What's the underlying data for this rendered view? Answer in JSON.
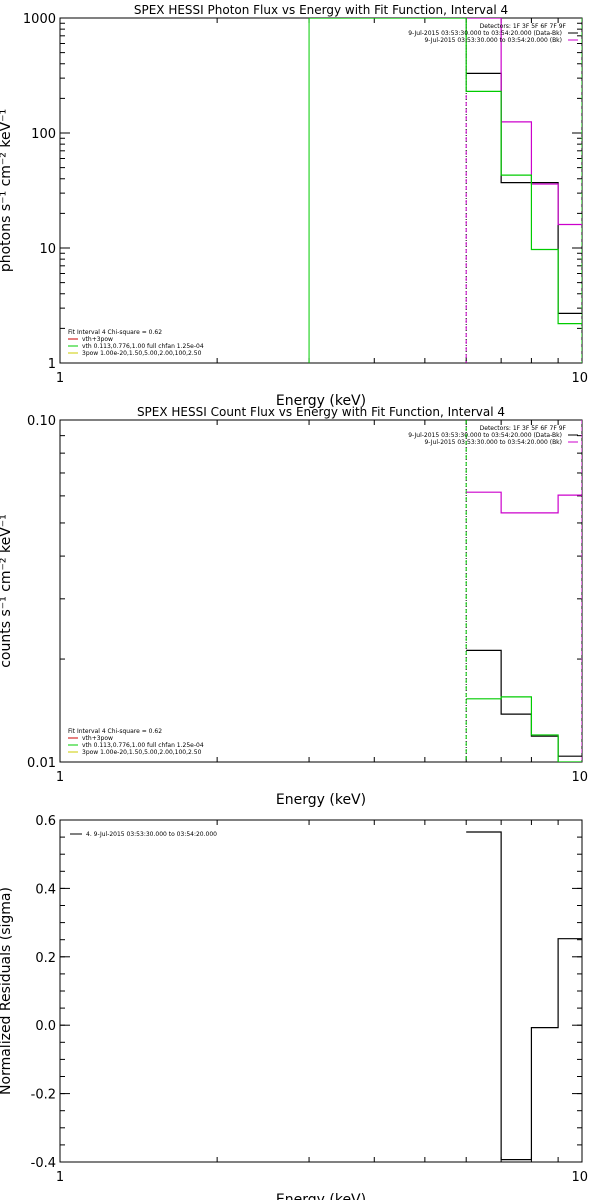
{
  "chart_data": [
    {
      "type": "line",
      "title": "SPEX HESSI Photon Flux vs Energy with Fit Function, Interval 4",
      "xlabel": "Energy (keV)",
      "ylabel": "photons s⁻¹ cm⁻² keV⁻¹",
      "x_scale": "log",
      "y_scale": "log",
      "xlim": [
        1,
        10
      ],
      "ylim": [
        1,
        1000
      ],
      "x_ticks": [
        {
          "v": 1,
          "label": "1"
        },
        {
          "v": 10,
          "label": "10"
        }
      ],
      "y_ticks": [
        {
          "v": 1,
          "label": "1"
        },
        {
          "v": 10,
          "label": "10"
        },
        {
          "v": 100,
          "label": "100"
        },
        {
          "v": 1000,
          "label": "1000"
        }
      ],
      "legend_tr": [
        "Detectors: 1F 3F 5F 6F 7F 9F",
        "9-Jul-2015 03:53:30.000 to 03:54:20.000 (Data-Bk)",
        "9-Jul-2015 03:53:30.000 to 03:54:20.000 (Bk)"
      ],
      "legend_bl": [
        "Fit Interval 4   Chi-square = 0.62",
        "vth+3pow",
        "vth 0.113,0.776,1.00  full chfan 1.25e-04",
        "3pow 1.00e-20,1.50,5.00,2.00,100,2.50"
      ],
      "series": [
        {
          "name": "Data-Bk",
          "color": "#000000",
          "x": [
            6,
            7,
            8,
            9,
            10
          ],
          "y": [
            330,
            37,
            37,
            2.7,
            2.7
          ]
        },
        {
          "name": "Bk",
          "color": "#cc00cc",
          "x": [
            6,
            7,
            8,
            9,
            10
          ],
          "y": [
            1000,
            125,
            36,
            16,
            16
          ]
        },
        {
          "name": "vth+3pow",
          "color": "#00cc00",
          "x": [
            3,
            5,
            6,
            7,
            8,
            9,
            10
          ],
          "y": [
            1000,
            1000,
            230,
            43,
            9.7,
            2.2,
            2.2
          ]
        }
      ],
      "vlines": [
        {
          "x": 3,
          "color": "#00cc00",
          "style": "solid"
        },
        {
          "x": 6,
          "color": "#000000",
          "style": "dotted"
        },
        {
          "x": 6,
          "color": "#cc00cc",
          "style": "dashed"
        },
        {
          "x": 10,
          "color": "#00cc00",
          "style": "dashed"
        }
      ]
    },
    {
      "type": "line",
      "title": "SPEX HESSI Count Flux vs Energy with Fit Function, Interval 4",
      "xlabel": "Energy (keV)",
      "ylabel": "counts s⁻¹ cm⁻² keV⁻¹",
      "x_scale": "log",
      "y_scale": "log",
      "xlim": [
        1,
        10
      ],
      "ylim": [
        0.01,
        0.1
      ],
      "x_ticks": [
        {
          "v": 1,
          "label": "1"
        },
        {
          "v": 10,
          "label": "10"
        }
      ],
      "y_ticks": [
        {
          "v": 0.01,
          "label": "0.01"
        },
        {
          "v": 0.1,
          "label": "0.10"
        }
      ],
      "legend_tr": [
        "Detectors: 1F 3F 5F 6F 7F 9F",
        "9-Jul-2015 03:53:30.000 to 03:54:20.000 (Data-Bk)",
        "9-Jul-2015 03:53:30.000 to 03:54:20.000 (Bk)"
      ],
      "legend_bl": [
        "Fit Interval 4   Chi-square = 0.62",
        "vth+3pow",
        "vth 0.113,0.776,1.00  full chfan 1.25e-04",
        "3pow 1.00e-20,1.50,5.00,2.00,100,2.50"
      ],
      "series": [
        {
          "name": "Data-Bk",
          "color": "#000000",
          "x": [
            6,
            7,
            8,
            9,
            10
          ],
          "y": [
            0.0212,
            0.0138,
            0.0119,
            0.0104,
            0.0104
          ]
        },
        {
          "name": "Bk",
          "color": "#cc00cc",
          "x": [
            6,
            7,
            8,
            9,
            10
          ],
          "y": [
            0.0615,
            0.0535,
            0.0535,
            0.0603,
            0.0603
          ]
        },
        {
          "name": "vth+3pow",
          "color": "#00cc00",
          "x": [
            6,
            7,
            8,
            9,
            10
          ],
          "y": [
            0.0153,
            0.0155,
            0.012,
            0.01,
            0.01
          ]
        }
      ],
      "vlines": [
        {
          "x": 6,
          "color": "#000000",
          "style": "dotted"
        },
        {
          "x": 6,
          "color": "#00cc00",
          "style": "dashed"
        },
        {
          "x": 10,
          "color": "#cc00cc",
          "style": "dashed"
        }
      ]
    },
    {
      "type": "line",
      "title": "",
      "xlabel": "Energy (keV)",
      "ylabel": "Normalized Residuals (sigma)",
      "x_scale": "log",
      "y_scale": "linear",
      "xlim": [
        1,
        10
      ],
      "ylim": [
        -0.4,
        0.6
      ],
      "x_ticks": [
        {
          "v": 1,
          "label": "1"
        },
        {
          "v": 10,
          "label": "10"
        }
      ],
      "y_ticks": [
        {
          "v": -0.4,
          "label": "-0.4"
        },
        {
          "v": -0.2,
          "label": "-0.2"
        },
        {
          "v": 0,
          "label": "0.0"
        },
        {
          "v": 0.2,
          "label": "0.2"
        },
        {
          "v": 0.4,
          "label": "0.4"
        },
        {
          "v": 0.6,
          "label": "0.6"
        }
      ],
      "legend_tl": [
        "4.  9-Jul-2015 03:53:30.000 to 03:54:20.000"
      ],
      "series": [
        {
          "name": "4.",
          "color": "#000000",
          "x": [
            6,
            7,
            8,
            9,
            10
          ],
          "y": [
            0.565,
            -0.393,
            -0.007,
            0.253,
            0.253
          ]
        }
      ]
    }
  ]
}
